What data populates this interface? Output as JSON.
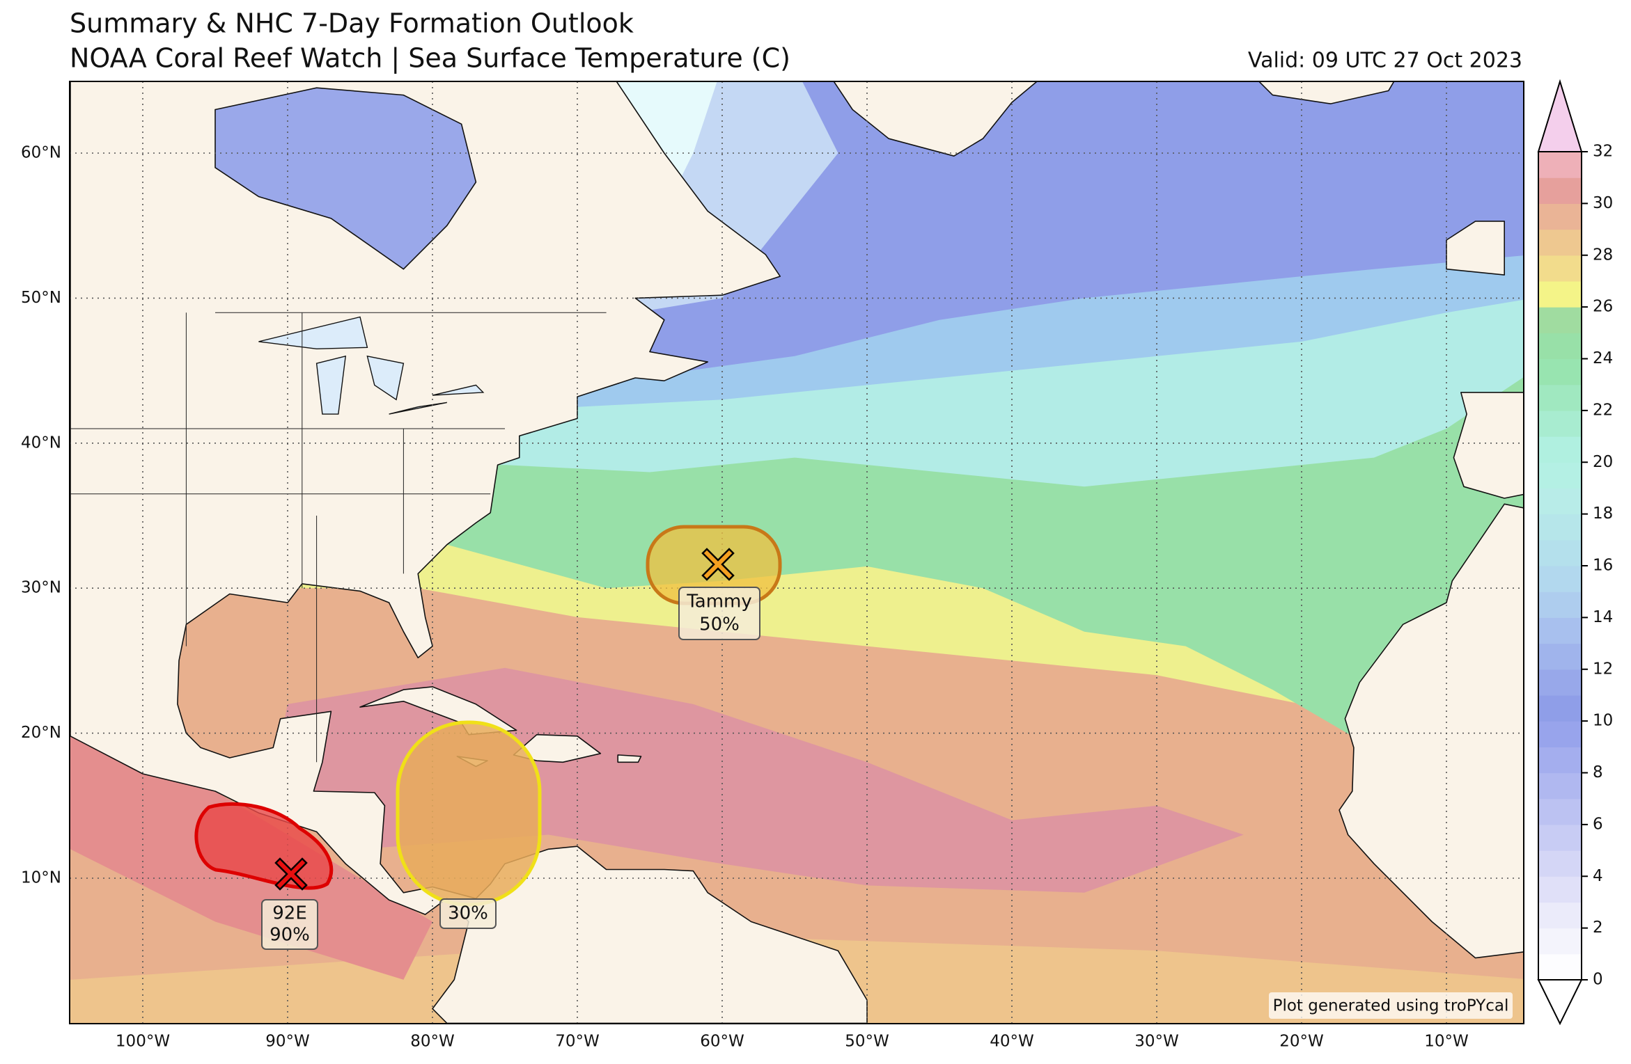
{
  "header": {
    "title": "Summary & NHC 7-Day Formation Outlook",
    "subtitle": "NOAA Coral Reef Watch | Sea Surface Temperature (C)",
    "valid": "Valid: 09 UTC 27 Oct 2023"
  },
  "map": {
    "lat_labels": [
      "10°N",
      "20°N",
      "30°N",
      "40°N",
      "50°N",
      "60°N"
    ],
    "lon_labels": [
      "100°W",
      "90°W",
      "80°W",
      "70°W",
      "60°W",
      "50°W",
      "40°W",
      "30°W",
      "20°W",
      "10°W"
    ],
    "areas": [
      {
        "name": "Tammy",
        "probability": "50%"
      },
      {
        "name": "92E",
        "probability": "90%"
      },
      {
        "probability": "30%"
      }
    ]
  },
  "colorbar": {
    "range": [
      0,
      32
    ],
    "ticks": [
      0,
      2,
      4,
      6,
      8,
      10,
      12,
      14,
      16,
      18,
      20,
      22,
      24,
      26,
      28,
      30,
      32
    ]
  },
  "credit": "Plot generated using troPYcal"
}
